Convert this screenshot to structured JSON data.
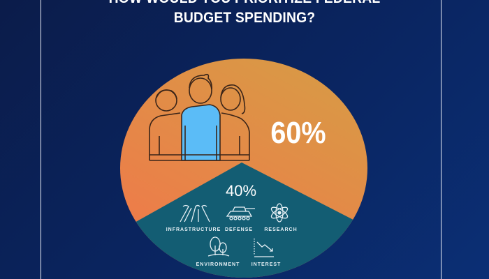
{
  "header": {
    "title_line1": "HOW WOULD YOU PRIORITIZE FEDERAL",
    "title_line2": "BUDGET SPENDING?"
  },
  "chart_data": {
    "type": "pie",
    "categories": [
      "People",
      "Budget categories"
    ],
    "values": [
      60,
      40
    ],
    "data_labels": [
      "60%",
      "40%"
    ],
    "colors": {
      "large_slice": "#e8854a",
      "small_slice": "#135d73",
      "background": "#0a2561",
      "highlight": "#5bbcf7"
    }
  },
  "categories": [
    {
      "label": "INFRASTRUCTURE",
      "icon": "road-icon"
    },
    {
      "label": "DEFENSE",
      "icon": "tank-icon"
    },
    {
      "label": "RESEARCH",
      "icon": "atom-icon"
    },
    {
      "label": "ENVIRONMENT",
      "icon": "trees-icon"
    },
    {
      "label": "INTEREST",
      "icon": "trend-down-icon"
    }
  ]
}
